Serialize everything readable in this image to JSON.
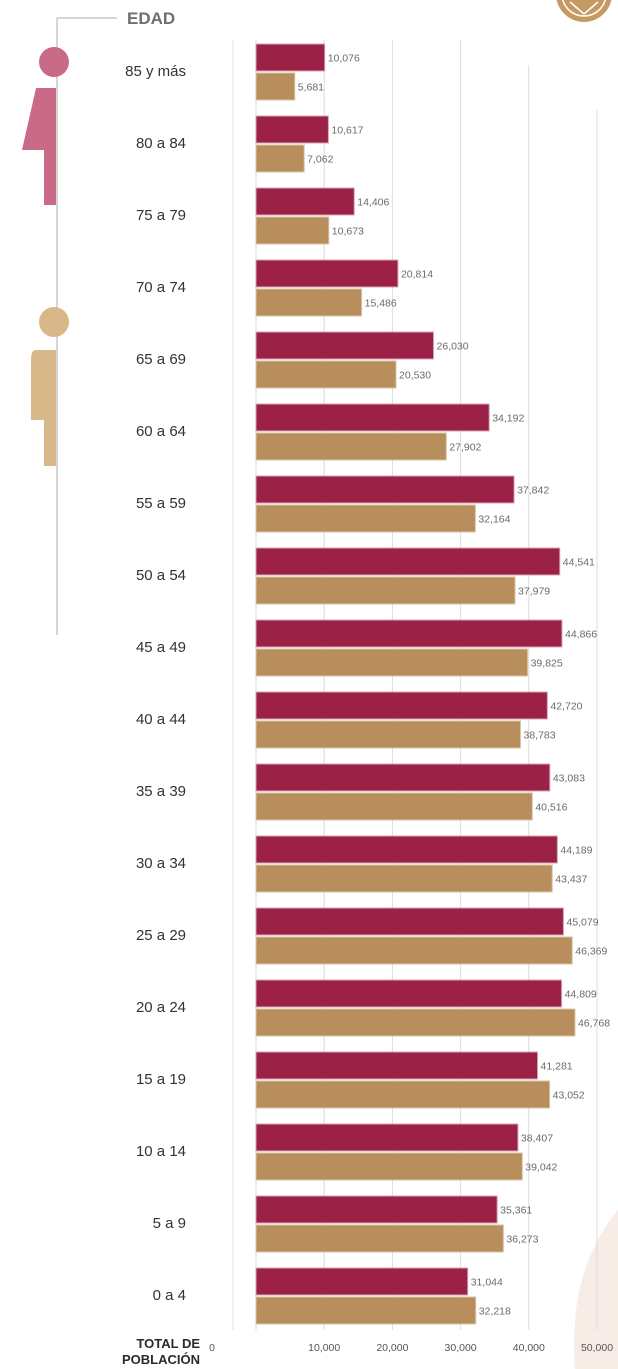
{
  "header": {
    "edad_label": "EDAD"
  },
  "icons": {
    "female_color": "#c96b87",
    "male_color": "#d8b888",
    "logo_color": "#b98a52",
    "female_icon": "female-figure-icon",
    "male_icon": "male-figure-icon"
  },
  "chart_data": {
    "type": "bar",
    "orientation": "horizontal",
    "categories": [
      "85 y más",
      "80 a 84",
      "75 a 79",
      "70 a 74",
      "65 a 69",
      "60 a 64",
      "55 a 59",
      "50 a 54",
      "45 a 49",
      "40 a 44",
      "35 a 39",
      "30 a 34",
      "25 a 29",
      "20 a 24",
      "15 a 19",
      "10 a 14",
      "5 a 9",
      "0 a 4"
    ],
    "series": [
      {
        "color": "#9b2246",
        "values": [
          10076,
          10617,
          14406,
          20814,
          26030,
          34192,
          37842,
          44541,
          44866,
          42720,
          43083,
          44189,
          45079,
          44809,
          41281,
          38407,
          35361,
          31044
        ]
      },
      {
        "color": "#b88e5d",
        "values": [
          5681,
          7062,
          10673,
          15486,
          20530,
          27902,
          32164,
          37979,
          39825,
          38783,
          40516,
          43437,
          46369,
          46768,
          43052,
          39042,
          36273,
          32218
        ]
      }
    ],
    "value_labels": [
      [
        "10,076",
        "10,617",
        "14,406",
        "20,814",
        "26,030",
        "34,192",
        "37,842",
        "44,541",
        "44,866",
        "42,720",
        "43,083",
        "44,189",
        "45,079",
        "44,809",
        "41,281",
        "38,407",
        "35,361",
        "31,044"
      ],
      [
        "5,681",
        "7,062",
        "10,673",
        "15,486",
        "20,530",
        "27,902",
        "32,164",
        "37,979",
        "39,825",
        "38,783",
        "40,516",
        "43,437",
        "46,369",
        "46,768",
        "43,052",
        "39,042",
        "36,273",
        "32,218"
      ]
    ],
    "x_ticks": [
      0,
      10000,
      20000,
      30000,
      40000,
      50000
    ],
    "x_tick_labels": [
      "0",
      "10,000",
      "20,000",
      "30,000",
      "40,000",
      "50,000"
    ],
    "xlim": [
      0,
      50000
    ],
    "axis_title_lines": [
      "TOTAL DE",
      "POBLACIÓN"
    ],
    "grid": true
  }
}
